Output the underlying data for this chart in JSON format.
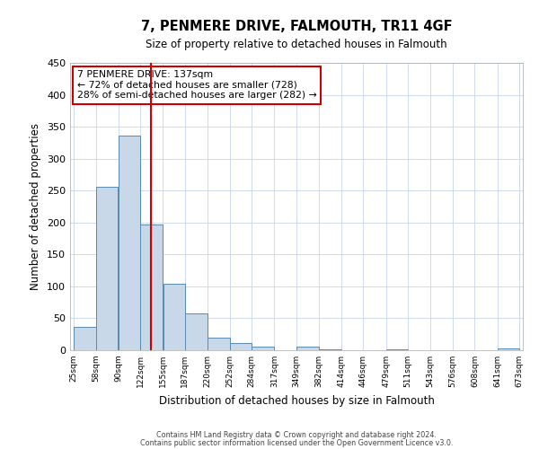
{
  "title": "7, PENMERE DRIVE, FALMOUTH, TR11 4GF",
  "subtitle": "Size of property relative to detached houses in Falmouth",
  "xlabel": "Distribution of detached houses by size in Falmouth",
  "ylabel": "Number of detached properties",
  "bin_edges": [
    25,
    58,
    90,
    122,
    155,
    187,
    220,
    252,
    284,
    317,
    349,
    382,
    414,
    446,
    479,
    511,
    543,
    576,
    608,
    641,
    673
  ],
  "counts": [
    36,
    256,
    336,
    197,
    104,
    57,
    20,
    11,
    5,
    0,
    6,
    1,
    0,
    0,
    1,
    0,
    0,
    0,
    0,
    3
  ],
  "property_size": 137,
  "bar_color": "#c8d8e8",
  "bar_edge_color": "#5a8ab0",
  "vline_color": "#cc0000",
  "annotation_box_edge_color": "#cc0000",
  "annotation_line1": "7 PENMERE DRIVE: 137sqm",
  "annotation_line2": "← 72% of detached houses are smaller (728)",
  "annotation_line3": "28% of semi-detached houses are larger (282) →",
  "ylim": [
    0,
    450
  ],
  "yticks": [
    0,
    50,
    100,
    150,
    200,
    250,
    300,
    350,
    400,
    450
  ],
  "footnote1": "Contains HM Land Registry data © Crown copyright and database right 2024.",
  "footnote2": "Contains public sector information licensed under the Open Government Licence v3.0.",
  "background_color": "#ffffff",
  "grid_color": "#c8d4e8"
}
